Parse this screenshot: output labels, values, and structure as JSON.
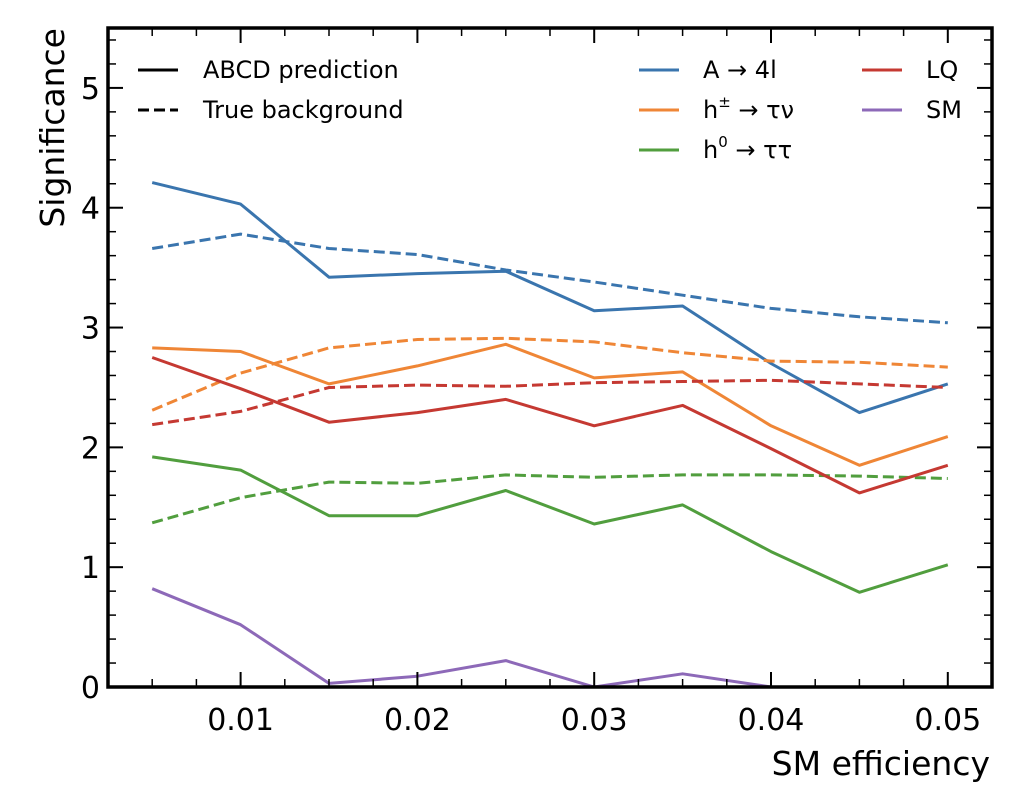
{
  "chart_data": {
    "type": "line",
    "xlabel": "SM efficiency",
    "ylabel": "Significance",
    "xlim": [
      0.0025,
      0.0525
    ],
    "ylim": [
      0,
      5.5
    ],
    "x": [
      0.005,
      0.01,
      0.015,
      0.02,
      0.025,
      0.03,
      0.035,
      0.04,
      0.045,
      0.05
    ],
    "xticks": [
      0.01,
      0.02,
      0.03,
      0.04,
      0.05
    ],
    "xtick_labels": [
      "0.01",
      "0.02",
      "0.03",
      "0.04",
      "0.05"
    ],
    "yticks": [
      0,
      1,
      2,
      3,
      4,
      5
    ],
    "ytick_labels": [
      "0",
      "1",
      "2",
      "3",
      "4",
      "5"
    ],
    "grid": false,
    "style_legend": {
      "placement": "top-left",
      "entries": [
        {
          "label": "ABCD prediction",
          "dash": "solid"
        },
        {
          "label": "True background",
          "dash": "dashed"
        }
      ]
    },
    "signal_legend": {
      "placement": "top-right",
      "entries": [
        {
          "label_parts": [
            "A",
            " → ",
            " 4l"
          ],
          "color": "#3a75ae"
        },
        {
          "label_parts": [
            "h",
            "±",
            " → τν"
          ],
          "color": "#ef8636"
        },
        {
          "label_parts": [
            "h",
            "0",
            " → ττ"
          ],
          "color": "#519e3e"
        },
        {
          "label": "LQ",
          "color": "#c53932"
        },
        {
          "label": "SM",
          "color": "#8d69b8"
        }
      ]
    },
    "series": [
      {
        "signal": "A → 4l",
        "style": "solid",
        "color": "#3a75ae",
        "values": [
          4.21,
          4.03,
          3.42,
          3.45,
          3.47,
          3.14,
          3.18,
          2.7,
          2.29,
          2.53
        ]
      },
      {
        "signal": "A → 4l",
        "style": "dashed",
        "color": "#3a75ae",
        "values": [
          3.66,
          3.78,
          3.66,
          3.61,
          3.48,
          3.38,
          3.27,
          3.16,
          3.09,
          3.04
        ]
      },
      {
        "signal": "h± → τν",
        "style": "solid",
        "color": "#ef8636",
        "values": [
          2.83,
          2.8,
          2.53,
          2.68,
          2.86,
          2.58,
          2.63,
          2.18,
          1.85,
          2.09
        ]
      },
      {
        "signal": "h± → τν",
        "style": "dashed",
        "color": "#ef8636",
        "values": [
          2.31,
          2.62,
          2.83,
          2.9,
          2.91,
          2.88,
          2.79,
          2.72,
          2.71,
          2.67
        ]
      },
      {
        "signal": "h0 → ττ",
        "style": "solid",
        "color": "#519e3e",
        "values": [
          1.92,
          1.81,
          1.43,
          1.43,
          1.64,
          1.36,
          1.52,
          1.13,
          0.79,
          1.02
        ]
      },
      {
        "signal": "h0 → ττ",
        "style": "dashed",
        "color": "#519e3e",
        "values": [
          1.37,
          1.58,
          1.71,
          1.7,
          1.77,
          1.75,
          1.77,
          1.77,
          1.76,
          1.74
        ]
      },
      {
        "signal": "LQ",
        "style": "solid",
        "color": "#c53932",
        "values": [
          2.75,
          2.49,
          2.21,
          2.29,
          2.4,
          2.18,
          2.35,
          1.99,
          1.62,
          1.85
        ]
      },
      {
        "signal": "LQ",
        "style": "dashed",
        "color": "#c53932",
        "values": [
          2.19,
          2.3,
          2.5,
          2.52,
          2.51,
          2.54,
          2.55,
          2.56,
          2.53,
          2.5
        ]
      },
      {
        "signal": "SM",
        "style": "solid",
        "color": "#8d69b8",
        "values": [
          0.82,
          0.52,
          0.03,
          0.09,
          0.22,
          0.0,
          0.11,
          0.0,
          null,
          null
        ]
      }
    ]
  }
}
